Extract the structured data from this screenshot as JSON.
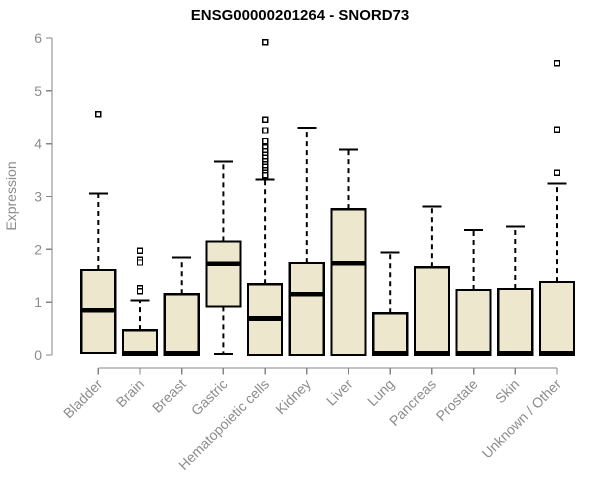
{
  "chart_data": {
    "type": "boxplot",
    "title": "ENSG00000201264 - SNORD73",
    "ylabel": "Expression",
    "xlabel": "",
    "ylim": [
      0,
      6
    ],
    "yticks": [
      0,
      1,
      2,
      3,
      4,
      5,
      6
    ],
    "grid": false,
    "legend": null,
    "categories": [
      "Bladder",
      "Brain",
      "Breast",
      "Gastric",
      "Hematopoietic cells",
      "Kidney",
      "Liver",
      "Lung",
      "Pancreas",
      "Prostate",
      "Skin",
      "Unknown / Other"
    ],
    "series": [
      {
        "label": "Bladder",
        "whisker_low": 0.04,
        "q1": 0.04,
        "median": 0.85,
        "q3": 1.61,
        "whisker_high": 3.06,
        "outliers": [
          4.56
        ]
      },
      {
        "label": "Brain",
        "whisker_low": 0.0,
        "q1": 0.0,
        "median": 0.03,
        "q3": 0.47,
        "whisker_high": 1.03,
        "outliers": [
          1.97,
          1.8,
          1.75,
          1.26,
          1.21
        ]
      },
      {
        "label": "Breast",
        "whisker_low": 0.0,
        "q1": 0.0,
        "median": 0.03,
        "q3": 1.15,
        "whisker_high": 1.85,
        "outliers": []
      },
      {
        "label": "Gastric",
        "whisker_low": 0.02,
        "q1": 0.92,
        "median": 1.73,
        "q3": 2.15,
        "whisker_high": 3.66,
        "outliers": []
      },
      {
        "label": "Hematopoietic cells",
        "whisker_low": 0.0,
        "q1": 0.0,
        "median": 0.69,
        "q3": 1.34,
        "whisker_high": 3.32,
        "outliers": [
          5.92,
          4.45,
          4.25,
          4.05,
          3.93,
          3.86,
          3.79,
          3.73,
          3.67,
          3.61,
          3.56,
          3.5,
          3.45,
          3.4
        ]
      },
      {
        "label": "Kidney",
        "whisker_low": 0.0,
        "q1": 0.0,
        "median": 1.15,
        "q3": 1.74,
        "whisker_high": 4.3,
        "outliers": []
      },
      {
        "label": "Liver",
        "whisker_low": 0.0,
        "q1": 0.0,
        "median": 1.74,
        "q3": 2.76,
        "whisker_high": 3.89,
        "outliers": []
      },
      {
        "label": "Lung",
        "whisker_low": 0.0,
        "q1": 0.0,
        "median": 0.03,
        "q3": 0.79,
        "whisker_high": 1.94,
        "outliers": []
      },
      {
        "label": "Pancreas",
        "whisker_low": 0.0,
        "q1": 0.0,
        "median": 0.03,
        "q3": 1.66,
        "whisker_high": 2.81,
        "outliers": []
      },
      {
        "label": "Prostate",
        "whisker_low": 0.0,
        "q1": 0.0,
        "median": 0.03,
        "q3": 1.23,
        "whisker_high": 2.37,
        "outliers": []
      },
      {
        "label": "Skin",
        "whisker_low": 0.0,
        "q1": 0.0,
        "median": 0.03,
        "q3": 1.25,
        "whisker_high": 2.43,
        "outliers": []
      },
      {
        "label": "Unknown / Other",
        "whisker_low": 0.0,
        "q1": 0.0,
        "median": 0.03,
        "q3": 1.38,
        "whisker_high": 3.25,
        "outliers": [
          5.52,
          4.26,
          3.45
        ]
      }
    ],
    "colors": {
      "box_fill": "#EDE8CD",
      "box_stroke": "#000000",
      "median": "#000000",
      "whisker": "#000000",
      "outlier_fill": "#FFFFFF",
      "axis": "#848484",
      "tick_text": "#8C8C8C",
      "title": "#000000",
      "background": "#FFFFFF"
    }
  }
}
